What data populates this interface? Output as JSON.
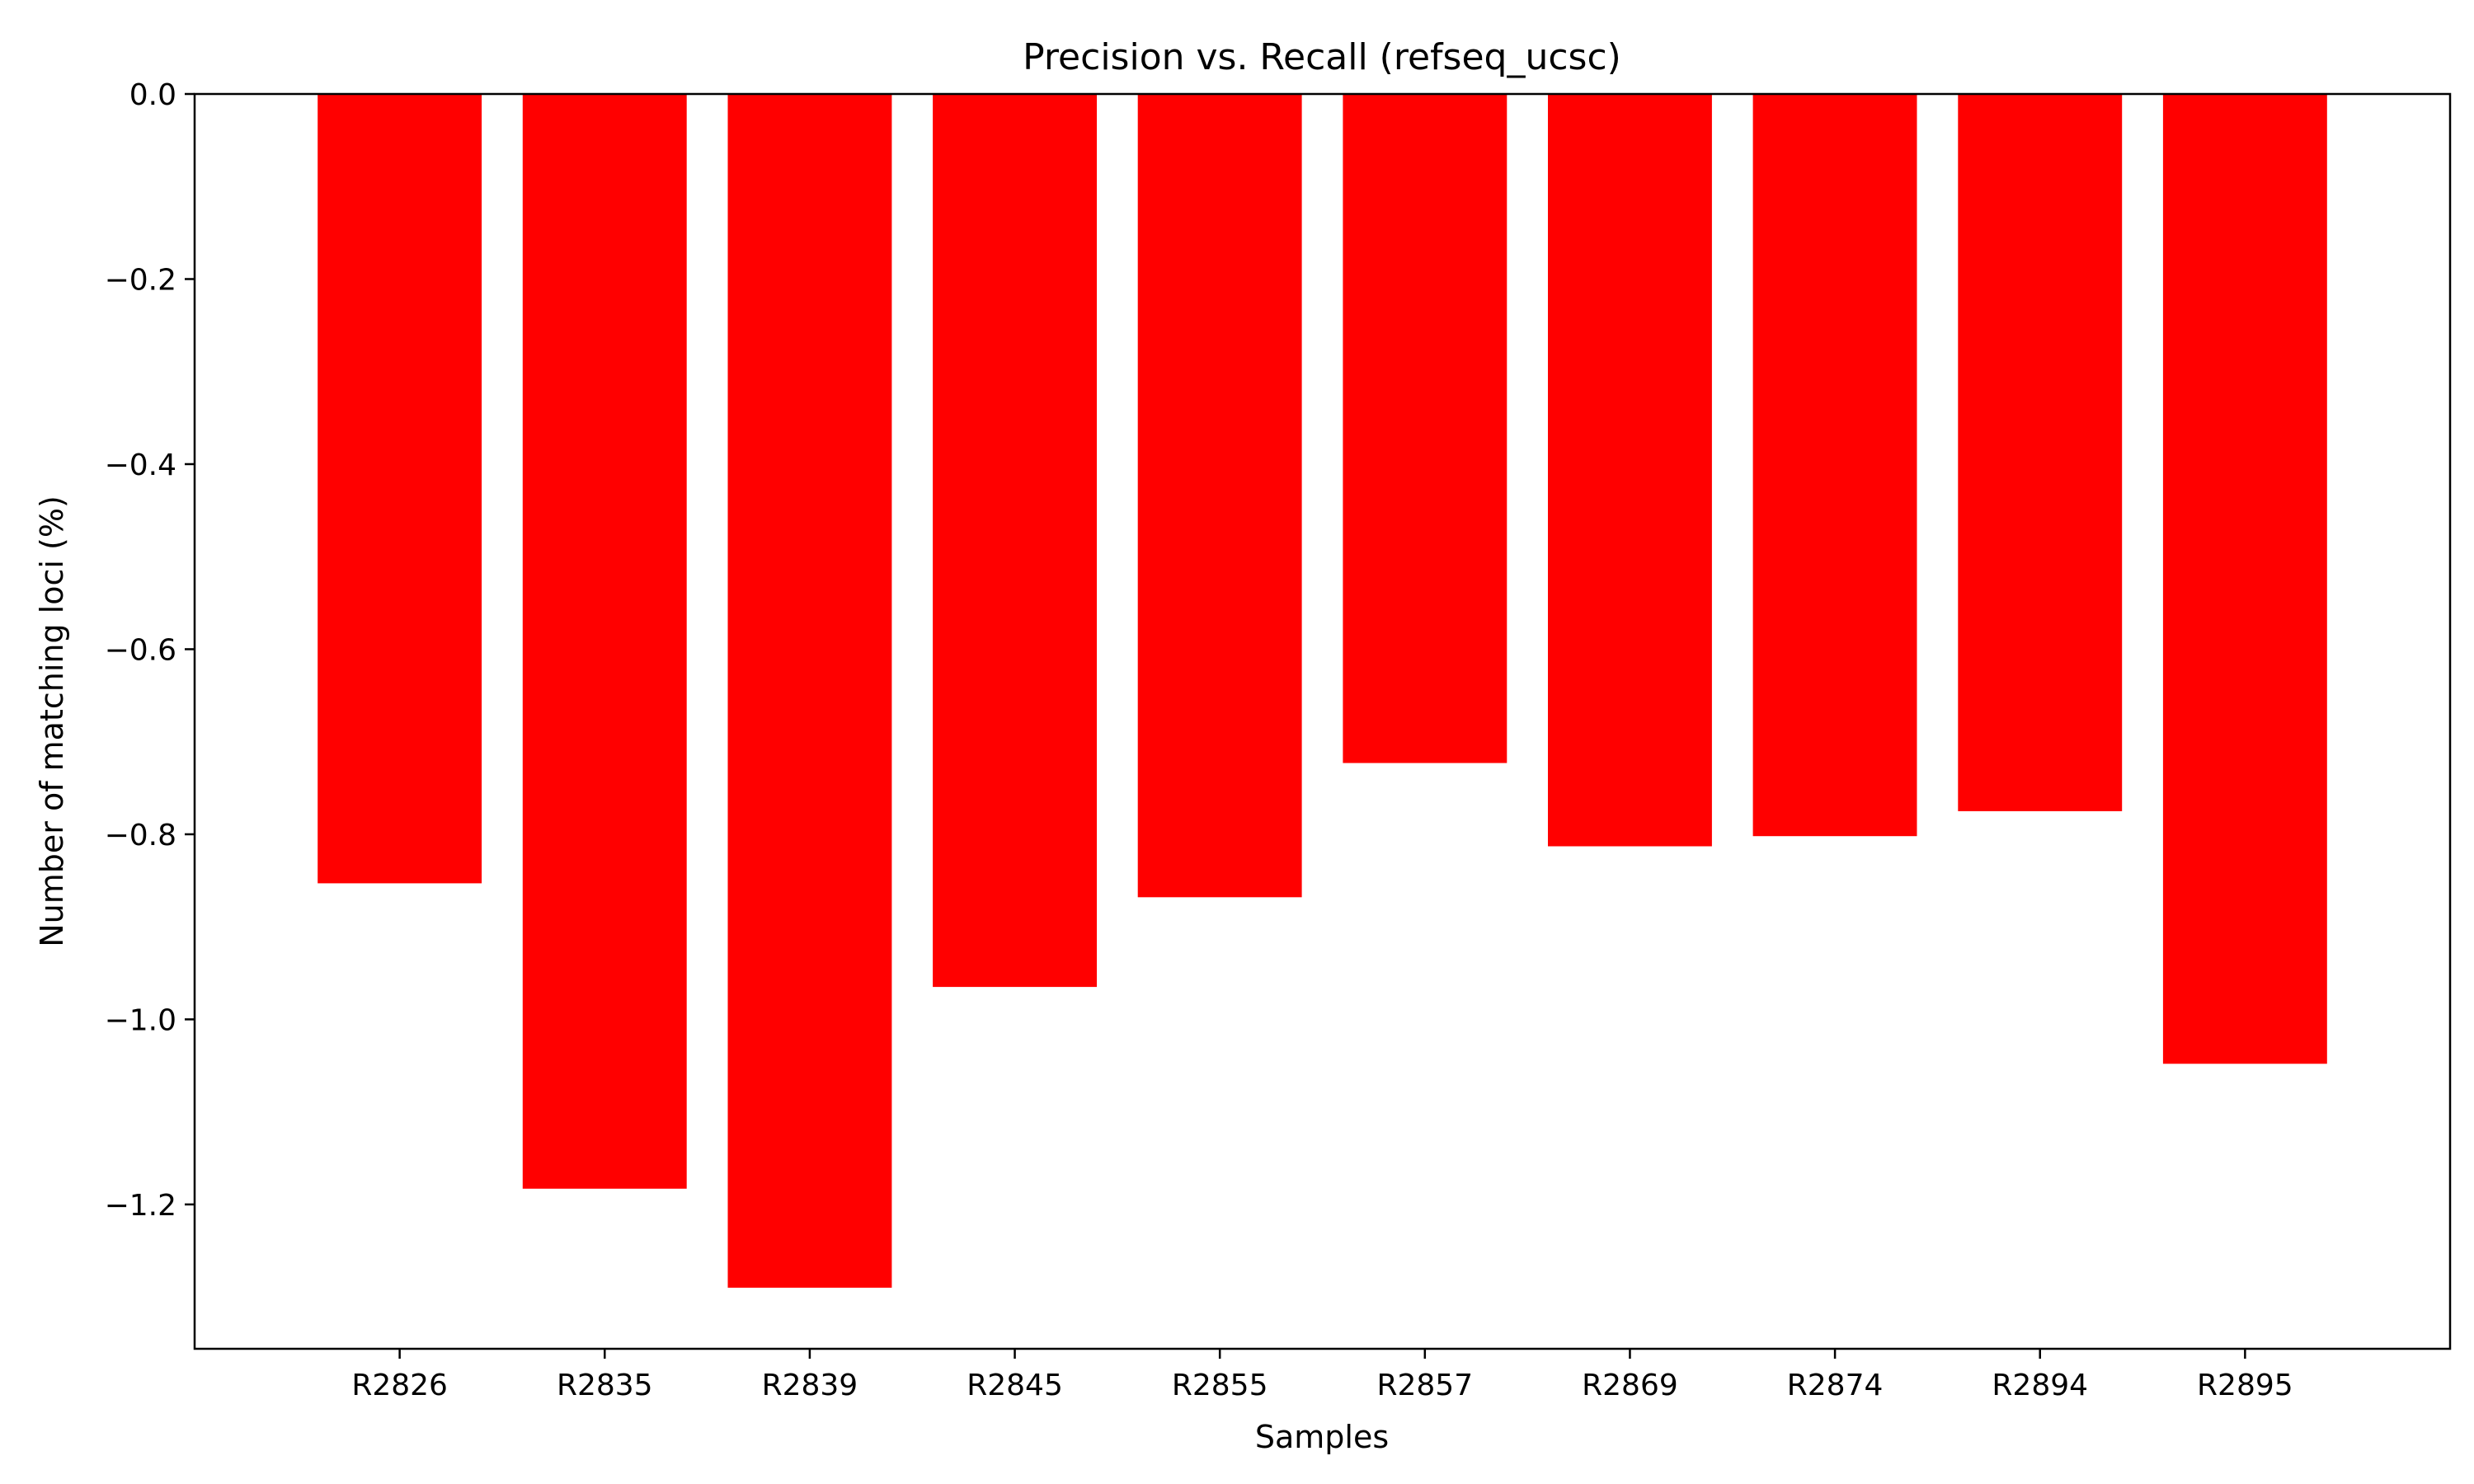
{
  "chart_data": {
    "type": "bar",
    "title": "Precision vs. Recall (refseq_ucsc)",
    "xlabel": "Samples",
    "ylabel": "Number of matching loci (%)",
    "categories": [
      "R2826",
      "R2835",
      "R2839",
      "R2845",
      "R2855",
      "R2857",
      "R2869",
      "R2874",
      "R2894",
      "R2895"
    ],
    "values": [
      -0.853,
      -1.183,
      -1.29,
      -0.965,
      -0.868,
      -0.723,
      -0.813,
      -0.802,
      -0.775,
      -1.048
    ],
    "ylim": [
      -1.356,
      0.0
    ],
    "yticks": [
      0.0,
      -0.2,
      -0.4,
      -0.6,
      -0.8,
      -1.0,
      -1.2
    ],
    "ytick_labels": [
      "0.0",
      "−0.2",
      "−0.4",
      "−0.6",
      "−0.8",
      "−1.0",
      "−1.2"
    ],
    "bar_color": "#ff0000",
    "grid": false,
    "legend": "none"
  }
}
